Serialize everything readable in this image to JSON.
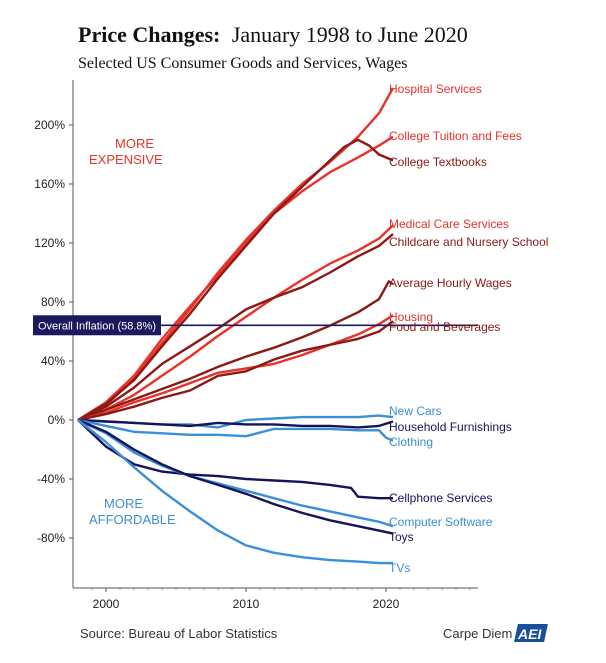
{
  "chart_data": {
    "type": "line",
    "title": "Price Changes: January 1998 to June 2020",
    "title_bold": "Price Changes:",
    "title_rest": "January 1998 to June 2020",
    "subtitle": "Selected US Consumer Goods and Services, Wages",
    "source": "Source: Bureau of Labor Statistics",
    "brand": "Carpe Diem",
    "brand_logo": "AEI",
    "xlabel": "",
    "ylabel": "",
    "xlim": [
      1998,
      2027
    ],
    "ylim": [
      -110,
      230
    ],
    "x_ticks": [
      {
        "value": 2000,
        "label": "2000"
      },
      {
        "value": 2010,
        "label": "2010"
      },
      {
        "value": 2020,
        "label": "2020"
      }
    ],
    "y_ticks": [
      {
        "value": 200,
        "label": "200%"
      },
      {
        "value": 160,
        "label": "160%"
      },
      {
        "value": 120,
        "label": "120%"
      },
      {
        "value": 80,
        "label": "80%"
      },
      {
        "value": 40,
        "label": "40%"
      },
      {
        "value": 0,
        "label": "0%"
      },
      {
        "value": -40,
        "label": "-40%"
      },
      {
        "value": -80,
        "label": "-80%"
      }
    ],
    "annotations": {
      "more_expensive": [
        "MORE",
        "EXPENSIVE"
      ],
      "more_affordable": [
        "MORE",
        "AFFORDABLE"
      ]
    },
    "reference_line": {
      "label": "Overall Inflation (58.8%)",
      "value": 58.8,
      "color": "#1a1a5e"
    },
    "colors": {
      "red": "#e8322a",
      "dark_red": "#8b1a14",
      "light_blue": "#3a8fd6",
      "navy": "#14145a",
      "expensive_label": "#e8322a",
      "affordable_label": "#3a8fd6"
    },
    "series": [
      {
        "name": "Hospital Services",
        "color": "#e8322a",
        "points": [
          [
            1998,
            0
          ],
          [
            2000,
            10
          ],
          [
            2002,
            28
          ],
          [
            2004,
            52
          ],
          [
            2006,
            75
          ],
          [
            2008,
            100
          ],
          [
            2010,
            122
          ],
          [
            2012,
            142
          ],
          [
            2014,
            160
          ],
          [
            2016,
            175
          ],
          [
            2018,
            192
          ],
          [
            2019.5,
            208
          ],
          [
            2020.5,
            225
          ]
        ]
      },
      {
        "name": "College Tuition and Fees",
        "color": "#e8322a",
        "points": [
          [
            1998,
            0
          ],
          [
            2000,
            12
          ],
          [
            2002,
            30
          ],
          [
            2004,
            55
          ],
          [
            2006,
            77
          ],
          [
            2008,
            98
          ],
          [
            2010,
            120
          ],
          [
            2012,
            140
          ],
          [
            2014,
            155
          ],
          [
            2016,
            168
          ],
          [
            2018,
            178
          ],
          [
            2019.5,
            186
          ],
          [
            2020.5,
            192
          ]
        ]
      },
      {
        "name": "College Textbooks",
        "color": "#8b1a14",
        "points": [
          [
            1998,
            0
          ],
          [
            2000,
            11
          ],
          [
            2002,
            27
          ],
          [
            2004,
            50
          ],
          [
            2006,
            72
          ],
          [
            2008,
            96
          ],
          [
            2010,
            118
          ],
          [
            2012,
            140
          ],
          [
            2014,
            158
          ],
          [
            2016,
            176
          ],
          [
            2017,
            185
          ],
          [
            2018,
            190
          ],
          [
            2018.8,
            186
          ],
          [
            2019.5,
            180
          ],
          [
            2020.5,
            176
          ]
        ]
      },
      {
        "name": "Medical Care Services",
        "color": "#e8322a",
        "points": [
          [
            1998,
            0
          ],
          [
            2000,
            7
          ],
          [
            2002,
            17
          ],
          [
            2004,
            30
          ],
          [
            2006,
            43
          ],
          [
            2008,
            57
          ],
          [
            2010,
            70
          ],
          [
            2012,
            83
          ],
          [
            2014,
            95
          ],
          [
            2016,
            106
          ],
          [
            2018,
            115
          ],
          [
            2019.5,
            123
          ],
          [
            2020.5,
            132
          ]
        ]
      },
      {
        "name": "Childcare and Nursery School",
        "color": "#8b1a14",
        "points": [
          [
            1998,
            0
          ],
          [
            2000,
            9
          ],
          [
            2002,
            22
          ],
          [
            2004,
            38
          ],
          [
            2006,
            50
          ],
          [
            2008,
            62
          ],
          [
            2010,
            75
          ],
          [
            2012,
            83
          ],
          [
            2014,
            90
          ],
          [
            2016,
            100
          ],
          [
            2018,
            111
          ],
          [
            2019.5,
            118
          ],
          [
            2020.5,
            126
          ]
        ]
      },
      {
        "name": "Average Hourly Wages",
        "color": "#8b1a14",
        "points": [
          [
            1998,
            0
          ],
          [
            2000,
            7
          ],
          [
            2002,
            14
          ],
          [
            2004,
            21
          ],
          [
            2006,
            28
          ],
          [
            2008,
            36
          ],
          [
            2010,
            43
          ],
          [
            2012,
            49
          ],
          [
            2014,
            56
          ],
          [
            2016,
            64
          ],
          [
            2018,
            73
          ],
          [
            2019.5,
            82
          ],
          [
            2020.2,
            94
          ],
          [
            2020.5,
            92
          ]
        ]
      },
      {
        "name": "Housing",
        "color": "#e8322a",
        "points": [
          [
            1998,
            0
          ],
          [
            2000,
            5
          ],
          [
            2002,
            12
          ],
          [
            2004,
            18
          ],
          [
            2006,
            25
          ],
          [
            2008,
            32
          ],
          [
            2010,
            35
          ],
          [
            2012,
            38
          ],
          [
            2014,
            44
          ],
          [
            2016,
            51
          ],
          [
            2018,
            58
          ],
          [
            2019.5,
            65
          ],
          [
            2020.5,
            71
          ]
        ]
      },
      {
        "name": "Food and Beverages",
        "color": "#8b1a14",
        "points": [
          [
            1998,
            0
          ],
          [
            2000,
            4
          ],
          [
            2002,
            9
          ],
          [
            2004,
            15
          ],
          [
            2006,
            20
          ],
          [
            2008,
            30
          ],
          [
            2010,
            33
          ],
          [
            2012,
            41
          ],
          [
            2014,
            47
          ],
          [
            2016,
            51
          ],
          [
            2018,
            55
          ],
          [
            2019.5,
            60
          ],
          [
            2020.5,
            67
          ]
        ]
      },
      {
        "name": "New Cars",
        "color": "#3a8fd6",
        "points": [
          [
            1998,
            0
          ],
          [
            2000,
            -1
          ],
          [
            2002,
            -2
          ],
          [
            2004,
            -3
          ],
          [
            2006,
            -3
          ],
          [
            2008,
            -5
          ],
          [
            2010,
            0
          ],
          [
            2012,
            1
          ],
          [
            2014,
            2
          ],
          [
            2016,
            2
          ],
          [
            2018,
            2
          ],
          [
            2019.5,
            3
          ],
          [
            2020.5,
            2
          ]
        ]
      },
      {
        "name": "Household Furnishings",
        "color": "#14145a",
        "points": [
          [
            1998,
            0
          ],
          [
            2000,
            -1
          ],
          [
            2002,
            -2
          ],
          [
            2004,
            -3
          ],
          [
            2006,
            -4
          ],
          [
            2008,
            -2
          ],
          [
            2010,
            -3
          ],
          [
            2012,
            -3
          ],
          [
            2014,
            -4
          ],
          [
            2016,
            -4
          ],
          [
            2018,
            -5
          ],
          [
            2019.5,
            -4
          ],
          [
            2020.5,
            -1
          ]
        ]
      },
      {
        "name": "Clothing",
        "color": "#3a8fd6",
        "points": [
          [
            1998,
            0
          ],
          [
            2000,
            -4
          ],
          [
            2002,
            -8
          ],
          [
            2004,
            -9
          ],
          [
            2006,
            -10
          ],
          [
            2008,
            -10
          ],
          [
            2010,
            -11
          ],
          [
            2012,
            -6
          ],
          [
            2014,
            -6
          ],
          [
            2016,
            -6
          ],
          [
            2018,
            -7
          ],
          [
            2019.5,
            -7
          ],
          [
            2020,
            -12
          ],
          [
            2020.5,
            -14
          ]
        ]
      },
      {
        "name": "Cellphone Services",
        "color": "#14145a",
        "points": [
          [
            1998,
            0
          ],
          [
            2000,
            -18
          ],
          [
            2002,
            -30
          ],
          [
            2004,
            -35
          ],
          [
            2006,
            -37
          ],
          [
            2008,
            -38
          ],
          [
            2010,
            -40
          ],
          [
            2012,
            -41
          ],
          [
            2014,
            -42
          ],
          [
            2016,
            -44
          ],
          [
            2017.5,
            -46
          ],
          [
            2018,
            -52
          ],
          [
            2019.5,
            -53
          ],
          [
            2020.5,
            -53
          ]
        ]
      },
      {
        "name": "Computer Software",
        "color": "#3a8fd6",
        "points": [
          [
            1998,
            0
          ],
          [
            2000,
            -9
          ],
          [
            2002,
            -22
          ],
          [
            2004,
            -31
          ],
          [
            2006,
            -38
          ],
          [
            2008,
            -43
          ],
          [
            2010,
            -48
          ],
          [
            2012,
            -53
          ],
          [
            2014,
            -58
          ],
          [
            2016,
            -62
          ],
          [
            2018,
            -66
          ],
          [
            2019.5,
            -69
          ],
          [
            2020.5,
            -72
          ]
        ]
      },
      {
        "name": "Toys",
        "color": "#14145a",
        "points": [
          [
            1998,
            0
          ],
          [
            2000,
            -8
          ],
          [
            2002,
            -20
          ],
          [
            2004,
            -30
          ],
          [
            2006,
            -38
          ],
          [
            2008,
            -44
          ],
          [
            2010,
            -50
          ],
          [
            2012,
            -57
          ],
          [
            2014,
            -63
          ],
          [
            2016,
            -68
          ],
          [
            2018,
            -72
          ],
          [
            2019.5,
            -75
          ],
          [
            2020.5,
            -77
          ]
        ]
      },
      {
        "name": "TVs",
        "color": "#3a8fd6",
        "points": [
          [
            1998,
            0
          ],
          [
            2000,
            -15
          ],
          [
            2002,
            -32
          ],
          [
            2004,
            -48
          ],
          [
            2006,
            -62
          ],
          [
            2008,
            -75
          ],
          [
            2010,
            -85
          ],
          [
            2012,
            -90
          ],
          [
            2014,
            -93
          ],
          [
            2016,
            -95
          ],
          [
            2018,
            -96
          ],
          [
            2019.5,
            -97
          ],
          [
            2020.5,
            -97
          ]
        ]
      }
    ],
    "legend_placement": "right-end-labels",
    "grid": false
  }
}
